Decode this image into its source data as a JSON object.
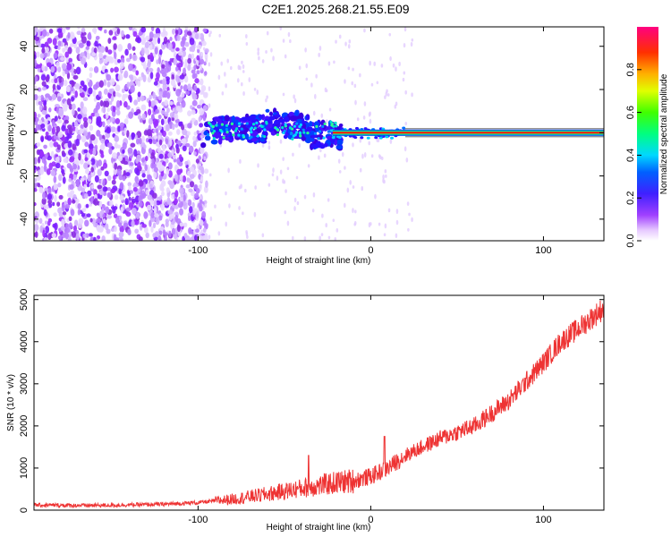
{
  "title": "C2E1.2025.268.21.55.E09",
  "chart_data": [
    {
      "type": "heatmap",
      "name": "spectrogram",
      "xlabel": "Height of straight line (km)",
      "ylabel": "Frequency (Hz)",
      "xlim": [
        -195,
        135
      ],
      "ylim": [
        -50,
        49
      ],
      "xticks": [
        -100,
        0,
        100
      ],
      "yticks": [
        -40,
        -20,
        0,
        20,
        40
      ],
      "colorbar": {
        "label": "Normalized spectral amplitude",
        "range": [
          0.0,
          1.0
        ],
        "ticks": [
          "0.0",
          "0.2",
          "0.4",
          "0.6",
          "0.8"
        ]
      },
      "features": {
        "noise_region_x": [
          -195,
          -95
        ],
        "signal_onset_x": -97,
        "tone_frequency_hz": 0,
        "strong_tone_from_x": -20
      }
    },
    {
      "type": "line",
      "name": "snr",
      "xlabel": "Height of straight line (km)",
      "ylabel": "SNR (10 * v/v)",
      "xlim": [
        -195,
        135
      ],
      "ylim": [
        0,
        5100
      ],
      "xticks": [
        -100,
        0,
        100
      ],
      "yticks": [
        0,
        1000,
        2000,
        3000,
        4000,
        5000
      ],
      "color": "#ee3333",
      "series": [
        {
          "name": "SNR",
          "x": [
            -195,
            -160,
            -120,
            -100,
            -80,
            -60,
            -40,
            -20,
            -10,
            0,
            5,
            10,
            20,
            40,
            60,
            80,
            100,
            110,
            120,
            135
          ],
          "y": [
            120,
            110,
            140,
            180,
            260,
            380,
            520,
            650,
            700,
            800,
            900,
            1000,
            1300,
            1700,
            2000,
            2600,
            3500,
            4000,
            4300,
            4800
          ]
        }
      ],
      "spikes": [
        {
          "x": -36,
          "y": 1300
        },
        {
          "x": 8,
          "y": 1750
        }
      ]
    }
  ]
}
